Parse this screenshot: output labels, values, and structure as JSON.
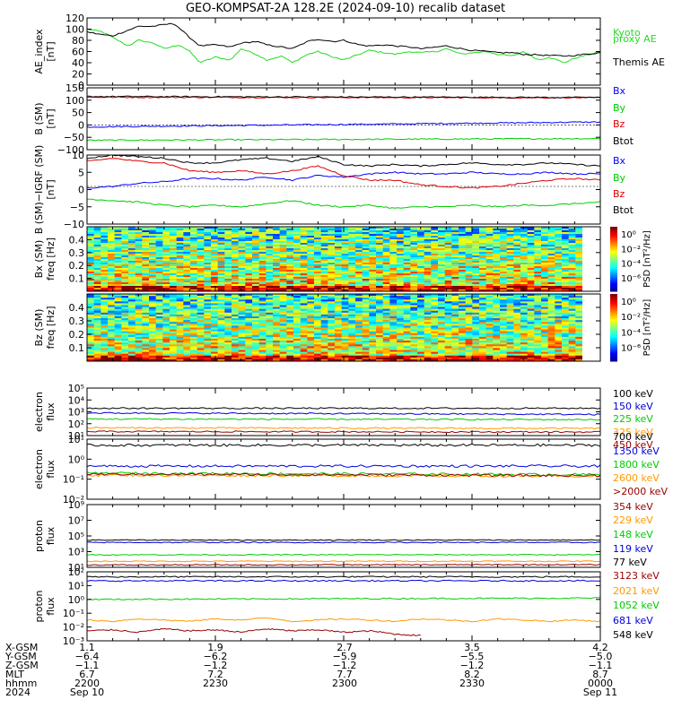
{
  "title": "GEO-KOMPSAT-2A 128.2E (2024-09-10) recalib dataset",
  "chart_data": [
    {
      "type": "line",
      "ylabel": [
        "AE_index",
        "[nT]"
      ],
      "ylim": [
        0,
        120
      ],
      "yticks": [
        "0",
        "20",
        "40",
        "60",
        "80",
        "100",
        "120"
      ],
      "series": [
        {
          "name": "Kyoto proxy AE",
          "color": "#22dd22",
          "x": [
            0,
            3,
            5,
            8,
            10,
            13,
            15,
            18,
            20,
            22,
            25,
            28,
            30,
            33,
            35,
            38,
            40,
            43,
            45,
            48,
            50,
            53,
            55,
            58,
            60,
            63,
            65,
            68,
            70,
            73,
            75,
            78,
            80,
            83,
            85,
            88,
            90,
            93,
            95,
            98,
            100
          ],
          "values": [
            100,
            95,
            85,
            70,
            80,
            75,
            65,
            72,
            60,
            40,
            50,
            45,
            65,
            55,
            45,
            52,
            40,
            55,
            60,
            50,
            45,
            55,
            62,
            58,
            55,
            60,
            58,
            60,
            65,
            55,
            58,
            60,
            55,
            52,
            60,
            45,
            50,
            40,
            48,
            55,
            60
          ]
        },
        {
          "name": "Themis AE",
          "color": "#000000",
          "x": [
            0,
            3,
            5,
            8,
            10,
            13,
            15,
            17,
            20,
            22,
            25,
            28,
            30,
            33,
            35,
            38,
            40,
            43,
            45,
            48,
            50,
            53,
            55,
            58,
            60,
            63,
            65,
            68,
            70,
            73,
            75,
            78,
            80,
            83,
            85,
            88,
            90,
            93,
            95,
            98,
            100
          ],
          "values": [
            95,
            90,
            88,
            98,
            105,
            105,
            108,
            110,
            85,
            70,
            72,
            68,
            75,
            78,
            72,
            68,
            65,
            78,
            82,
            78,
            80,
            72,
            70,
            72,
            70,
            68,
            65,
            68,
            70,
            65,
            62,
            60,
            58,
            58,
            55,
            54,
            53,
            52,
            53,
            56,
            58
          ]
        }
      ]
    },
    {
      "type": "line",
      "ylabel": [
        "B (SM)",
        "[nT]"
      ],
      "ylim": [
        -100,
        150
      ],
      "yticks": [
        "−100",
        "−50",
        "0",
        "50",
        "100",
        "150"
      ],
      "series": [
        {
          "name": "Bx",
          "color": "#0000ff",
          "x": [
            0,
            100
          ],
          "values": [
            -8,
            12
          ]
        },
        {
          "name": "By",
          "color": "#00cc00",
          "x": [
            0,
            100
          ],
          "values": [
            -62,
            -55
          ]
        },
        {
          "name": "Bz",
          "color": "#dd0000",
          "x": [
            0,
            100
          ],
          "values": [
            112,
            110
          ]
        },
        {
          "name": "Btot",
          "color": "#000000",
          "x": [
            0,
            100
          ],
          "values": [
            115,
            111
          ]
        }
      ]
    },
    {
      "type": "line",
      "ylabel": [
        "B (SM)−IGRF (SM)",
        "[nT]"
      ],
      "ylim": [
        -12,
        10
      ],
      "yticks": [
        "−10",
        "−5",
        "0",
        "5",
        "10"
      ],
      "series": [
        {
          "name": "Bx",
          "color": "#0000ff",
          "x": [
            0,
            5,
            10,
            15,
            20,
            25,
            30,
            35,
            40,
            45,
            50,
            55,
            60,
            65,
            70,
            75,
            80,
            85,
            90,
            95,
            100
          ],
          "values": [
            -0.5,
            0,
            1,
            1.5,
            2.5,
            2.5,
            2,
            3,
            2,
            3.5,
            3,
            4,
            4.5,
            4,
            4,
            4.5,
            4,
            4,
            4.5,
            4,
            4
          ]
        },
        {
          "name": "By",
          "color": "#00cc00",
          "x": [
            0,
            5,
            10,
            15,
            20,
            25,
            30,
            35,
            40,
            45,
            50,
            55,
            60,
            65,
            70,
            75,
            80,
            85,
            90,
            95,
            100
          ],
          "values": [
            -4,
            -4.5,
            -5,
            -6,
            -6.5,
            -6,
            -6.5,
            -5.5,
            -4.5,
            -6,
            -6.5,
            -6,
            -7,
            -6.5,
            -6.5,
            -6,
            -6.5,
            -6,
            -6,
            -5.5,
            -5
          ]
        },
        {
          "name": "Bz",
          "color": "#dd0000",
          "x": [
            0,
            5,
            10,
            15,
            20,
            25,
            30,
            35,
            40,
            45,
            50,
            55,
            60,
            65,
            70,
            75,
            80,
            85,
            90,
            95,
            100
          ],
          "values": [
            8,
            9,
            8,
            7.5,
            5,
            4.5,
            5,
            4,
            5,
            6.5,
            3.5,
            2,
            2,
            0.5,
            0,
            -0.5,
            0,
            1,
            2,
            2.5,
            2
          ]
        },
        {
          "name": "Btot",
          "color": "#000000",
          "x": [
            0,
            5,
            10,
            15,
            20,
            25,
            30,
            35,
            40,
            45,
            50,
            55,
            60,
            65,
            70,
            75,
            80,
            85,
            90,
            95,
            100
          ],
          "values": [
            9,
            10,
            9.5,
            9,
            7.5,
            7.5,
            8.5,
            9,
            8,
            9.5,
            7,
            6.5,
            7,
            6.5,
            7,
            7.5,
            7,
            7,
            7.5,
            7,
            6.5
          ]
        }
      ]
    },
    {
      "type": "heatmap",
      "ylabel": [
        "Bx (SM)",
        "freq [Hz]"
      ],
      "ylim": [
        0,
        0.5
      ],
      "yticks": [
        "0.1",
        "0.2",
        "0.3",
        "0.4"
      ],
      "colorbar": {
        "label": "PSD [nT²/Hz]",
        "ticks": [
          "10⁰",
          "10⁻²",
          "10⁻⁴",
          "10⁻⁶"
        ]
      }
    },
    {
      "type": "heatmap",
      "ylabel": [
        "Bz (SM)",
        "freq [Hz]"
      ],
      "ylim": [
        0,
        0.5
      ],
      "yticks": [
        "0.1",
        "0.2",
        "0.3",
        "0.4"
      ],
      "colorbar": {
        "label": "PSD [nT²/Hz]",
        "ticks": [
          "10⁰",
          "10⁻²",
          "10⁻⁴",
          "10⁻⁶"
        ]
      }
    },
    {
      "type": "line",
      "ylabel": [
        "electron",
        "flux"
      ],
      "scale": "log",
      "ylim": [
        10,
        100000
      ],
      "yticks": [
        "10¹",
        "10²",
        "10³",
        "10⁴",
        "10⁵"
      ],
      "series": [
        {
          "name": "100 keV",
          "color": "#000000",
          "x": [
            0,
            100
          ],
          "values": [
            2000,
            2000
          ]
        },
        {
          "name": "150 keV",
          "color": "#0000dd",
          "x": [
            0,
            100
          ],
          "values": [
            800,
            600
          ]
        },
        {
          "name": "225 keV",
          "color": "#00cc00",
          "x": [
            0,
            100
          ],
          "values": [
            250,
            220
          ]
        },
        {
          "name": "325 keV",
          "color": "#ff9900",
          "x": [
            0,
            100
          ],
          "values": [
            45,
            40
          ]
        },
        {
          "name": "450 keV",
          "color": "#990000",
          "x": [
            0,
            100
          ],
          "values": [
            22,
            20
          ]
        }
      ]
    },
    {
      "type": "line",
      "ylabel": [
        "electron",
        "flux"
      ],
      "scale": "log",
      "ylim": [
        0.01,
        10
      ],
      "yticks": [
        "10⁻²",
        "10⁻¹",
        "10⁰",
        "10¹"
      ],
      "series": [
        {
          "name": "700 keV",
          "color": "#000000",
          "x": [
            0,
            100
          ],
          "values": [
            5,
            5
          ]
        },
        {
          "name": "1350 keV",
          "color": "#0000dd",
          "x": [
            0,
            100
          ],
          "values": [
            0.45,
            0.45
          ]
        },
        {
          "name": "1800 keV",
          "color": "#00cc00",
          "x": [
            0,
            100
          ],
          "values": [
            0.2,
            0.17
          ]
        },
        {
          "name": "2600 keV",
          "color": "#ff9900",
          "x": [
            0,
            100
          ],
          "values": [
            0.16,
            0.14
          ]
        },
        {
          "name": ">2000 keV",
          "color": "#990000",
          "x": [
            0,
            100
          ],
          "values": [
            0.18,
            0.15
          ]
        }
      ]
    },
    {
      "type": "line",
      "ylabel": [
        "proton",
        "flux"
      ],
      "scale": "log",
      "ylim": [
        10,
        1000000000
      ],
      "yticks": [
        "10¹",
        "10³",
        "10⁵",
        "10⁷",
        "10⁹"
      ],
      "series": [
        {
          "name": "354 keV",
          "color": "#990000",
          "x": [
            0,
            100
          ],
          "values": [
            20,
            22
          ]
        },
        {
          "name": "229 keV",
          "color": "#ff9900",
          "x": [
            0,
            100
          ],
          "values": [
            60,
            60
          ]
        },
        {
          "name": "148 keV",
          "color": "#00cc00",
          "x": [
            0,
            100
          ],
          "values": [
            400,
            400
          ]
        },
        {
          "name": "119 keV",
          "color": "#0000dd",
          "x": [
            0,
            100
          ],
          "values": [
            15000,
            15000
          ]
        },
        {
          "name": "77 keV",
          "color": "#000000",
          "x": [
            0,
            100
          ],
          "values": [
            30000,
            30000
          ]
        }
      ]
    },
    {
      "type": "line",
      "ylabel": [
        "proton",
        "flux"
      ],
      "scale": "log",
      "ylim": [
        5e-05,
        100
      ],
      "yticks": [
        "10⁻³",
        "10⁻²",
        "10⁻¹",
        "10⁰",
        "10¹",
        "10²"
      ],
      "series": [
        {
          "name": "3123 keV",
          "color": "#990000",
          "x": [
            0,
            5,
            10,
            15,
            20,
            25,
            30,
            35,
            40,
            45,
            50,
            55,
            60,
            65
          ],
          "values": [
            0.0004,
            0.0005,
            0.0003,
            0.0006,
            0.0004,
            0.0005,
            0.0003,
            0.0006,
            0.0004,
            0.0005,
            0.0003,
            0.0004,
            0.0002,
            0.00015
          ]
        },
        {
          "name": "2021 keV",
          "color": "#ff9900",
          "x": [
            0,
            5,
            10,
            15,
            20,
            25,
            30,
            35,
            40,
            45,
            50,
            55,
            60,
            65,
            70,
            75,
            80,
            85,
            90,
            95,
            100
          ],
          "values": [
            0.004,
            0.003,
            0.005,
            0.004,
            0.003,
            0.005,
            0.004,
            0.006,
            0.003,
            0.004,
            0.005,
            0.004,
            0.003,
            0.005,
            0.004,
            0.003,
            0.005,
            0.004,
            0.003,
            0.004,
            0.003
          ]
        },
        {
          "name": "1052 keV",
          "color": "#00cc00",
          "x": [
            0,
            100
          ],
          "values": [
            0.3,
            0.4
          ]
        },
        {
          "name": "681 keV",
          "color": "#0000dd",
          "x": [
            0,
            100
          ],
          "values": [
            15,
            15
          ]
        },
        {
          "name": "548 keV",
          "color": "#000000",
          "x": [
            0,
            100
          ],
          "values": [
            35,
            35
          ]
        }
      ]
    }
  ],
  "footer": {
    "row_labels": [
      "X-GSM",
      "Y-GSM",
      "Z-GSM",
      "MLT",
      "hhmm",
      "2024"
    ],
    "columns": [
      [
        "1.1",
        "−6.4",
        "−1.1",
        "6.7",
        "2200",
        "Sep 10"
      ],
      [
        "1.9",
        "−6.2",
        "−1.2",
        "7.2",
        "2230",
        ""
      ],
      [
        "2.7",
        "−5.9",
        "−1.2",
        "7.7",
        "2300",
        ""
      ],
      [
        "3.5",
        "−5.5",
        "−1.2",
        "8.2",
        "2330",
        ""
      ],
      [
        "4.2",
        "−5.0",
        "−1.1",
        "8.7",
        "0000",
        "Sep 11"
      ]
    ]
  }
}
